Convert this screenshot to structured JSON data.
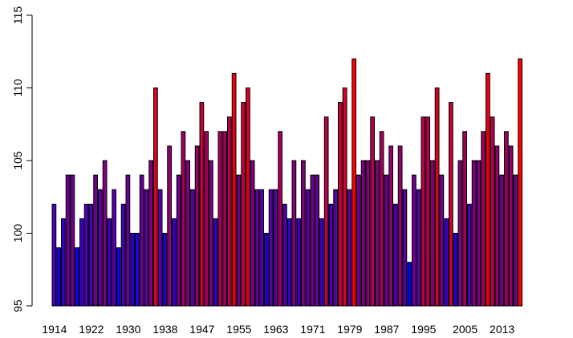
{
  "chart_data": {
    "type": "bar",
    "title": "",
    "xlabel": "",
    "ylabel": "",
    "ylim": [
      95,
      115
    ],
    "yticks": [
      95,
      100,
      105,
      110,
      115
    ],
    "xtick_labels": [
      "1914",
      "1922",
      "1930",
      "1938",
      "1947",
      "1955",
      "1963",
      "1971",
      "1979",
      "1987",
      "1995",
      "2005",
      "2013"
    ],
    "xtick_after_bar_index": [
      0,
      8,
      16,
      24,
      32,
      40,
      48,
      56,
      64,
      72,
      80,
      89,
      97
    ],
    "color_low": "#0000ff",
    "color_high": "#ff0000",
    "values": [
      102,
      99,
      101,
      104,
      104,
      99,
      101,
      102,
      102,
      104,
      103,
      105,
      101,
      103,
      99,
      102,
      104,
      100,
      100,
      104,
      103,
      105,
      110,
      103,
      100,
      106,
      101,
      104,
      107,
      105,
      103,
      106,
      109,
      107,
      105,
      101,
      107,
      107,
      108,
      111,
      104,
      109,
      110,
      105,
      103,
      103,
      100,
      103,
      103,
      107,
      102,
      101,
      105,
      101,
      105,
      103,
      104,
      104,
      101,
      108,
      102,
      103,
      109,
      110,
      103,
      112,
      104,
      105,
      105,
      108,
      105,
      107,
      104,
      106,
      102,
      106,
      103,
      98,
      104,
      103,
      108,
      108,
      105,
      110,
      104,
      101,
      109,
      100,
      105,
      107,
      102,
      105,
      105,
      107,
      111,
      108,
      106,
      104,
      107,
      106,
      104,
      112
    ],
    "grid": false,
    "legend": "none"
  }
}
